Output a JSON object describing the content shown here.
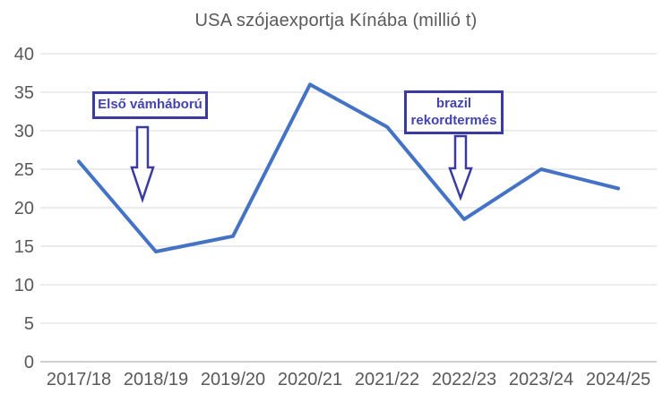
{
  "chart_data": {
    "type": "line",
    "title": "USA szójaexportja Kínába (millió t)",
    "categories": [
      "2017/18",
      "2018/19",
      "2019/20",
      "2020/21",
      "2021/22",
      "2022/23",
      "2023/24",
      "2024/25"
    ],
    "series": [
      {
        "name": "USA szójaexportja Kínába (millió t)",
        "values": [
          26,
          14.3,
          16.3,
          36,
          30.5,
          18.5,
          25,
          22.5
        ]
      }
    ],
    "xlabel": "",
    "ylabel": "",
    "ylim": [
      0,
      40
    ],
    "yticks": [
      0,
      5,
      10,
      15,
      20,
      25,
      30,
      35,
      40
    ],
    "grid": true,
    "legend": "none",
    "annotations": [
      {
        "lines": [
          "Első vámháború"
        ],
        "target_category": "2018/19"
      },
      {
        "lines": [
          "brazil",
          "rekordtermés"
        ],
        "target_category": "2022/23"
      }
    ],
    "colors": {
      "line": "#4472C4",
      "gridline": "#D9D9D9",
      "axis_line": "#BFBFBF",
      "tick_label": "#595959",
      "title": "#595959",
      "annotation_border": "#3A3AA0",
      "annotation_text": "#4343B2"
    }
  }
}
